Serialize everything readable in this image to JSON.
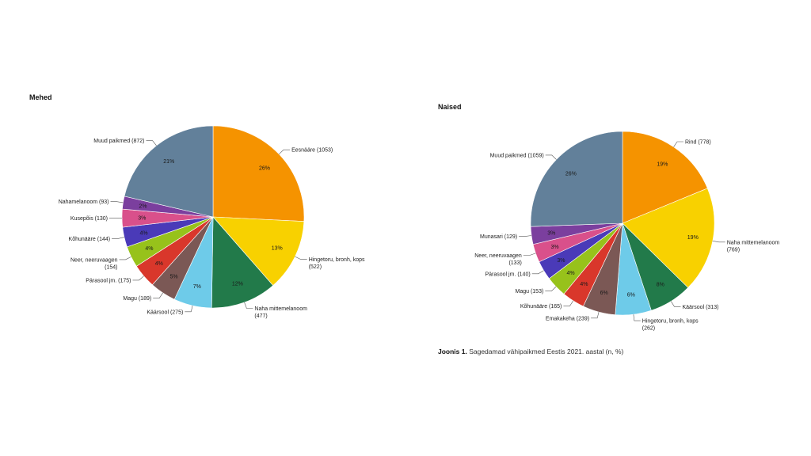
{
  "chart_data": [
    {
      "type": "pie",
      "title": "Mehed",
      "slices": [
        {
          "label": "Eesnääre (1053)",
          "value": 1053,
          "pct": "26%",
          "color": "#f59300"
        },
        {
          "label": "Hingetoru, bronh, kops\n(522)",
          "value": 522,
          "pct": "13%",
          "color": "#f8d100"
        },
        {
          "label": "Naha mittemelanoom\n(477)",
          "value": 477,
          "pct": "12%",
          "color": "#227a4a"
        },
        {
          "label": "Käärsool (275)",
          "value": 275,
          "pct": "7%",
          "color": "#6ecbe9"
        },
        {
          "label": "Magu (189)",
          "value": 189,
          "pct": "5%",
          "color": "#7b5855"
        },
        {
          "label": "Pärasool jm. (175)",
          "value": 175,
          "pct": "4%",
          "color": "#d9372b"
        },
        {
          "label": "Neer, neeruvaagen\n(154)",
          "value": 154,
          "pct": "4%",
          "color": "#97c21b"
        },
        {
          "label": "Kõhunääre (144)",
          "value": 144,
          "pct": "4%",
          "color": "#4a3ab8"
        },
        {
          "label": "Kusepõis (130)",
          "value": 130,
          "pct": "3%",
          "color": "#d9508b"
        },
        {
          "label": "Nahamelanoom (93)",
          "value": 93,
          "pct": "2%",
          "color": "#7b3f9e"
        },
        {
          "label": "Muud paikmed (872)",
          "value": 872,
          "pct": "21%",
          "color": "#62809a"
        }
      ]
    },
    {
      "type": "pie",
      "title": "Naised",
      "slices": [
        {
          "label": "Rind (778)",
          "value": 778,
          "pct": "19%",
          "color": "#f59300"
        },
        {
          "label": "Naha mittemelanoom\n(769)",
          "value": 769,
          "pct": "19%",
          "color": "#f8d100"
        },
        {
          "label": "Käärsool (313)",
          "value": 313,
          "pct": "8%",
          "color": "#227a4a"
        },
        {
          "label": "Hingetoru, bronh, kops\n(262)",
          "value": 262,
          "pct": "6%",
          "color": "#6ecbe9"
        },
        {
          "label": "Emakakeha (239)",
          "value": 239,
          "pct": "6%",
          "color": "#7b5855"
        },
        {
          "label": "Kõhunääre (165)",
          "value": 165,
          "pct": "4%",
          "color": "#d9372b"
        },
        {
          "label": "Magu (153)",
          "value": 153,
          "pct": "4%",
          "color": "#97c21b"
        },
        {
          "label": "Pärasool jm. (140)",
          "value": 140,
          "pct": "3%",
          "color": "#4a3ab8"
        },
        {
          "label": "Neer, neeruvaagen\n(133)",
          "value": 133,
          "pct": "3%",
          "color": "#d9508b"
        },
        {
          "label": "Munasari (129)",
          "value": 129,
          "pct": "3%",
          "color": "#7b3f9e"
        },
        {
          "label": "Muud paikmed (1059)",
          "value": 1059,
          "pct": "26%",
          "color": "#62809a"
        }
      ]
    }
  ],
  "caption": {
    "bold": "Joonis 1.",
    "text": " Sagedamad vähipaikmed Eestis 2021. aastal (n, %)"
  }
}
